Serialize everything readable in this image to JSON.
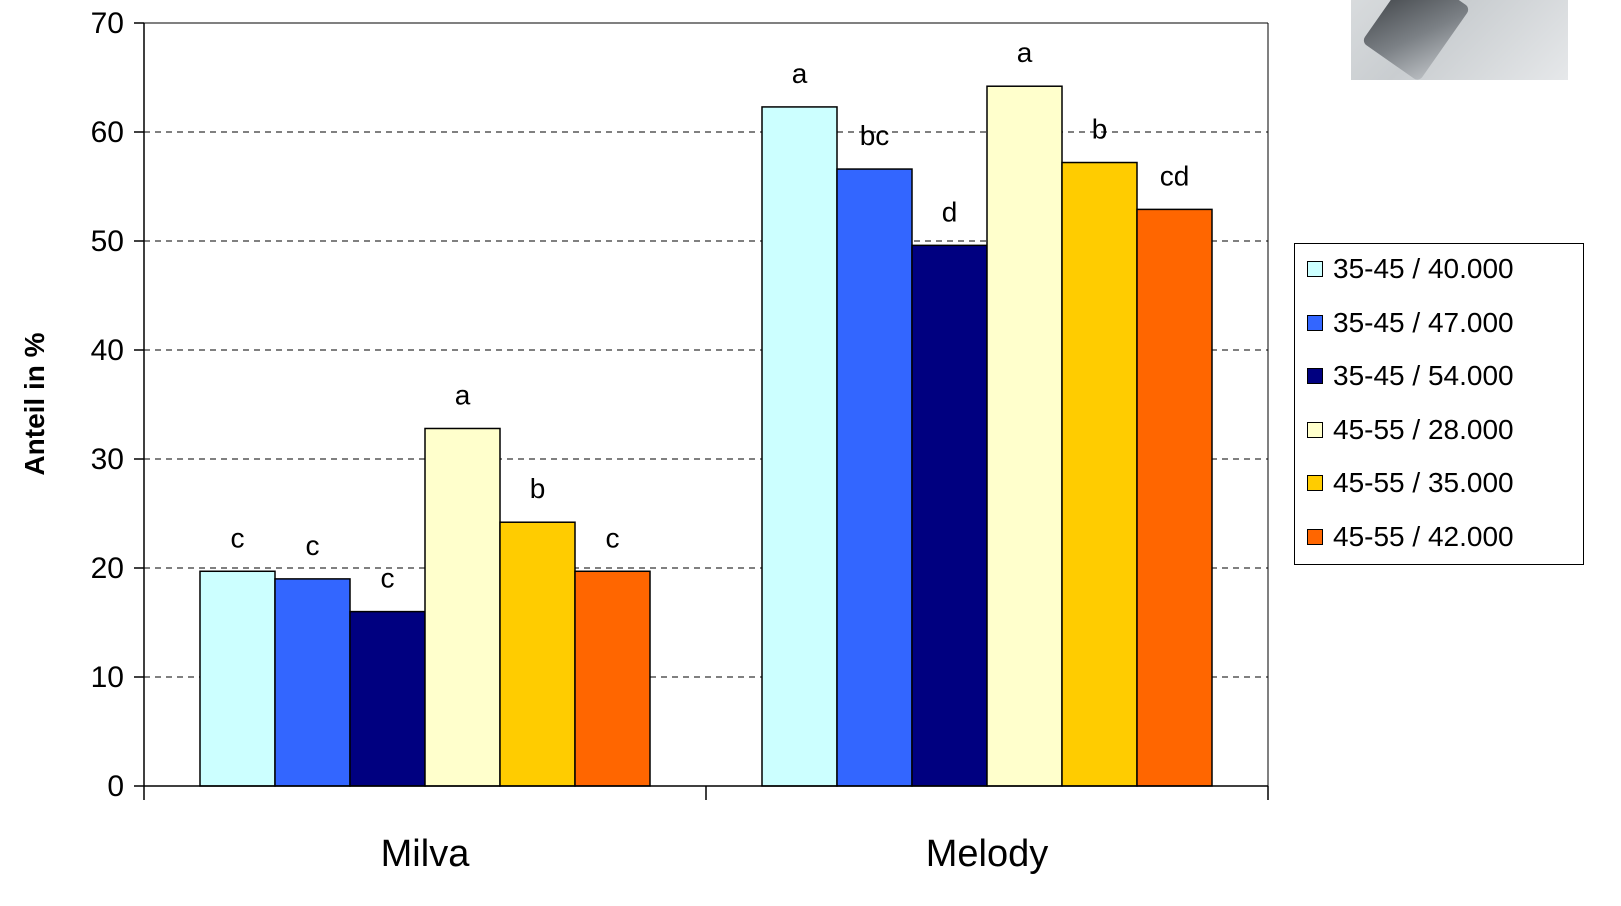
{
  "chart_data": {
    "type": "bar",
    "categories": [
      "Milva",
      "Melody"
    ],
    "ylabel": "Anteil in %",
    "xlabel": "",
    "ylim": [
      0,
      70
    ],
    "yticks": [
      0,
      10,
      20,
      30,
      40,
      50,
      60,
      70
    ],
    "grid": "horizontal dashed",
    "legend_position": "right",
    "series": [
      {
        "name": "35-45 / 40.000",
        "color": "#ccffff",
        "values": [
          19.7,
          62.3
        ],
        "labels": [
          "c",
          "a"
        ]
      },
      {
        "name": "35-45 / 47.000",
        "color": "#3366ff",
        "values": [
          19.0,
          56.6
        ],
        "labels": [
          "c",
          "bc"
        ]
      },
      {
        "name": "35-45 / 54.000",
        "color": "#000080",
        "values": [
          16.0,
          49.6
        ],
        "labels": [
          "c",
          "d"
        ]
      },
      {
        "name": "45-55 / 28.000",
        "color": "#ffffcc",
        "values": [
          32.8,
          64.2
        ],
        "labels": [
          "a",
          "a"
        ]
      },
      {
        "name": "45-55 / 35.000",
        "color": "#ffcc00",
        "values": [
          24.2,
          57.2
        ],
        "labels": [
          "b",
          "b"
        ]
      },
      {
        "name": "45-55 / 42.000",
        "color": "#ff6600",
        "values": [
          19.7,
          52.9
        ],
        "labels": [
          "c",
          "cd"
        ]
      }
    ]
  }
}
